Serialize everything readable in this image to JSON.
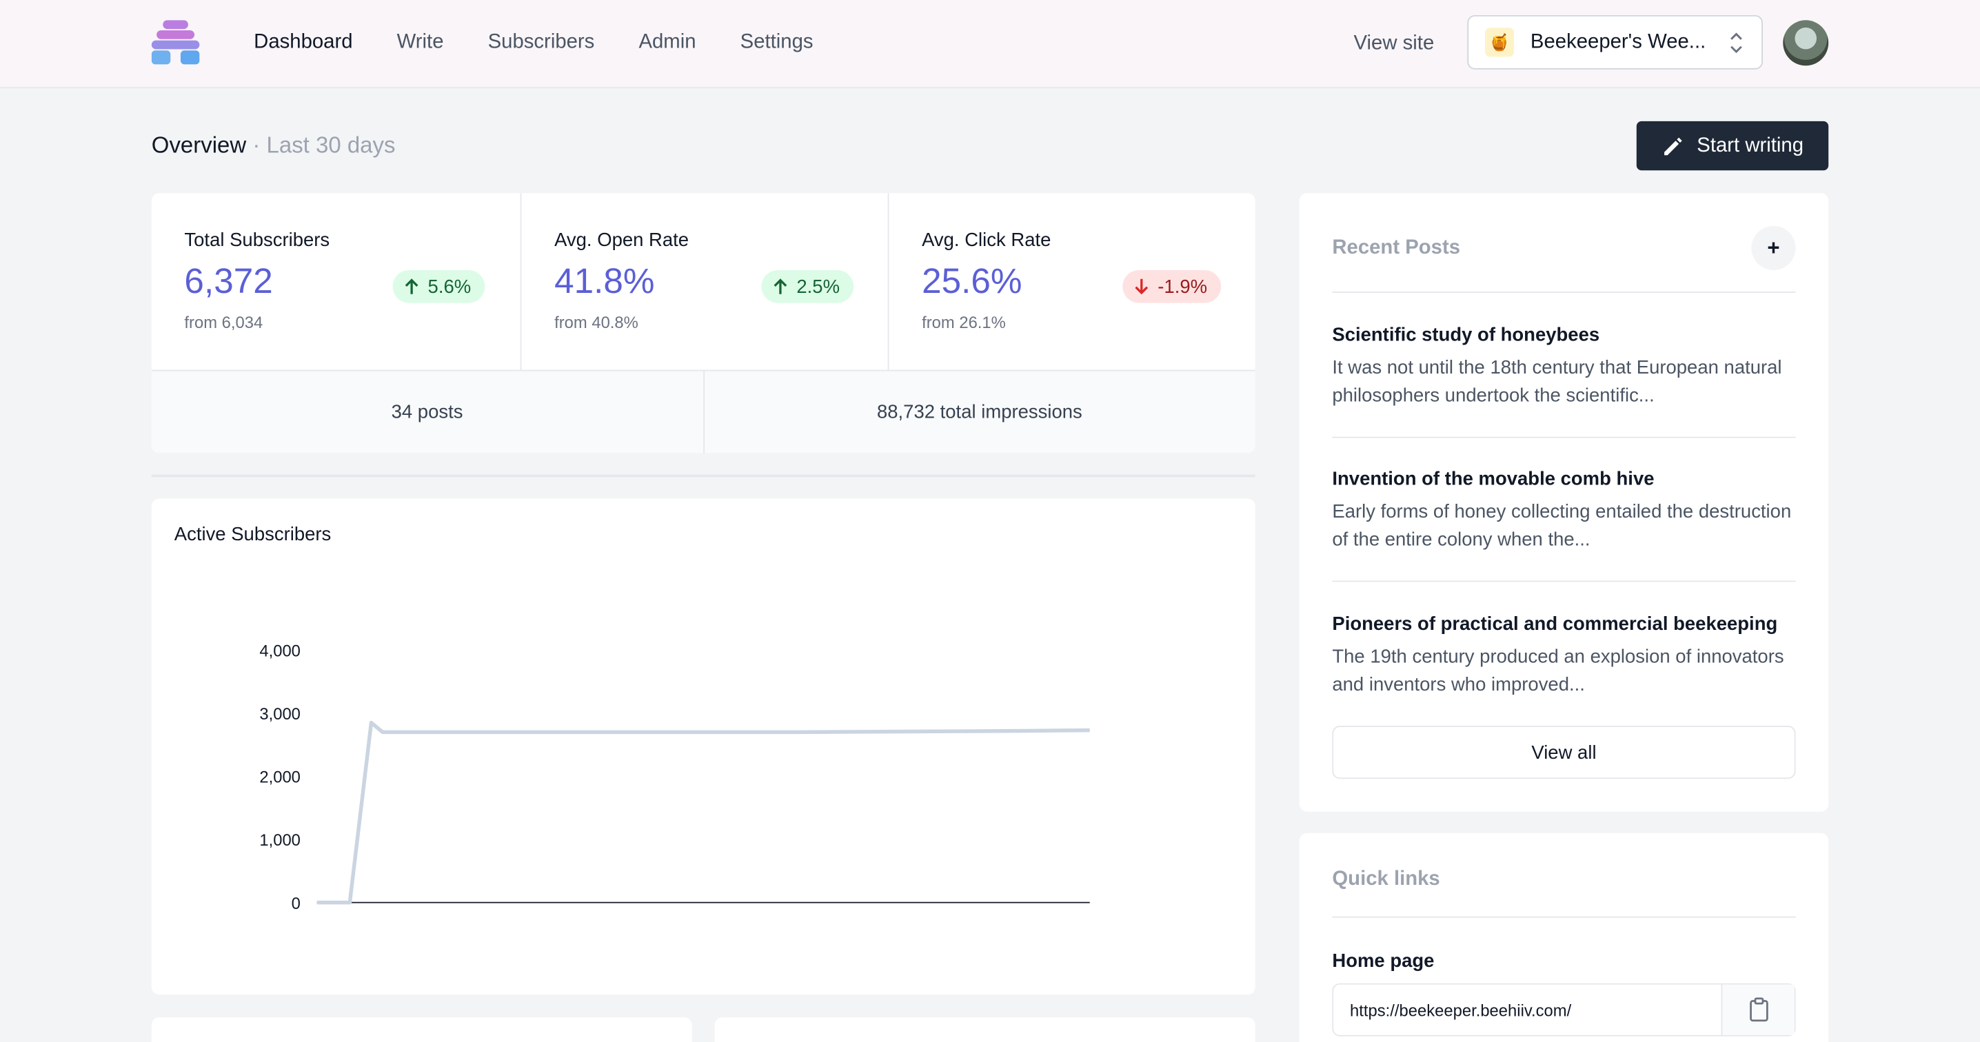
{
  "nav": {
    "items": [
      {
        "label": "Dashboard"
      },
      {
        "label": "Write"
      },
      {
        "label": "Subscribers"
      },
      {
        "label": "Admin"
      },
      {
        "label": "Settings"
      }
    ],
    "view_site": "View site",
    "publication": {
      "name": "Beekeeper's Wee...",
      "icon": "honey-jar-icon"
    }
  },
  "overview": {
    "title": "Overview",
    "range": "· Last 30 days",
    "start_writing": "Start writing"
  },
  "stats": [
    {
      "label": "Total Subscribers",
      "value": "6,372",
      "change": "5.6%",
      "direction": "up",
      "from": "from 6,034"
    },
    {
      "label": "Avg. Open Rate",
      "value": "41.8%",
      "change": "2.5%",
      "direction": "up",
      "from": "from 40.8%"
    },
    {
      "label": "Avg. Click Rate",
      "value": "25.6%",
      "change": "-1.9%",
      "direction": "down",
      "from": "from 26.1%"
    }
  ],
  "totals": {
    "posts": "34 posts",
    "impressions": "88,732 total impressions"
  },
  "chart_data": {
    "type": "line",
    "title": "Active Subscribers",
    "ylim": [
      0,
      4000
    ],
    "yticks": [
      "0",
      "1,000",
      "2,000",
      "3,000",
      "4,000"
    ],
    "series": [
      {
        "values": [
          0,
          0,
          0,
          2850,
          2700,
          2700,
          2700,
          2700,
          2710,
          2720,
          2730
        ]
      }
    ],
    "grid": false,
    "line_color": "#cbd5e1"
  },
  "recent_posts": {
    "title": "Recent Posts",
    "add": "+",
    "items": [
      {
        "title": "Scientific study of honeybees",
        "excerpt": "It was not until the 18th century that European natural philosophers undertook the scientific..."
      },
      {
        "title": "Invention of the movable comb hive",
        "excerpt": "Early forms of honey collecting entailed the destruction of the entire colony when the..."
      },
      {
        "title": "Pioneers of practical and commercial beekeeping",
        "excerpt": "The 19th century produced an explosion of innovators and inventors who improved..."
      }
    ],
    "view_all": "View all"
  },
  "quick_links": {
    "title": "Quick links",
    "home_label": "Home page",
    "home_url": "https://beekeeper.beehiiv.com/"
  },
  "colors": {
    "accent": "#5b5fd6",
    "dark_button": "#1f2937"
  }
}
